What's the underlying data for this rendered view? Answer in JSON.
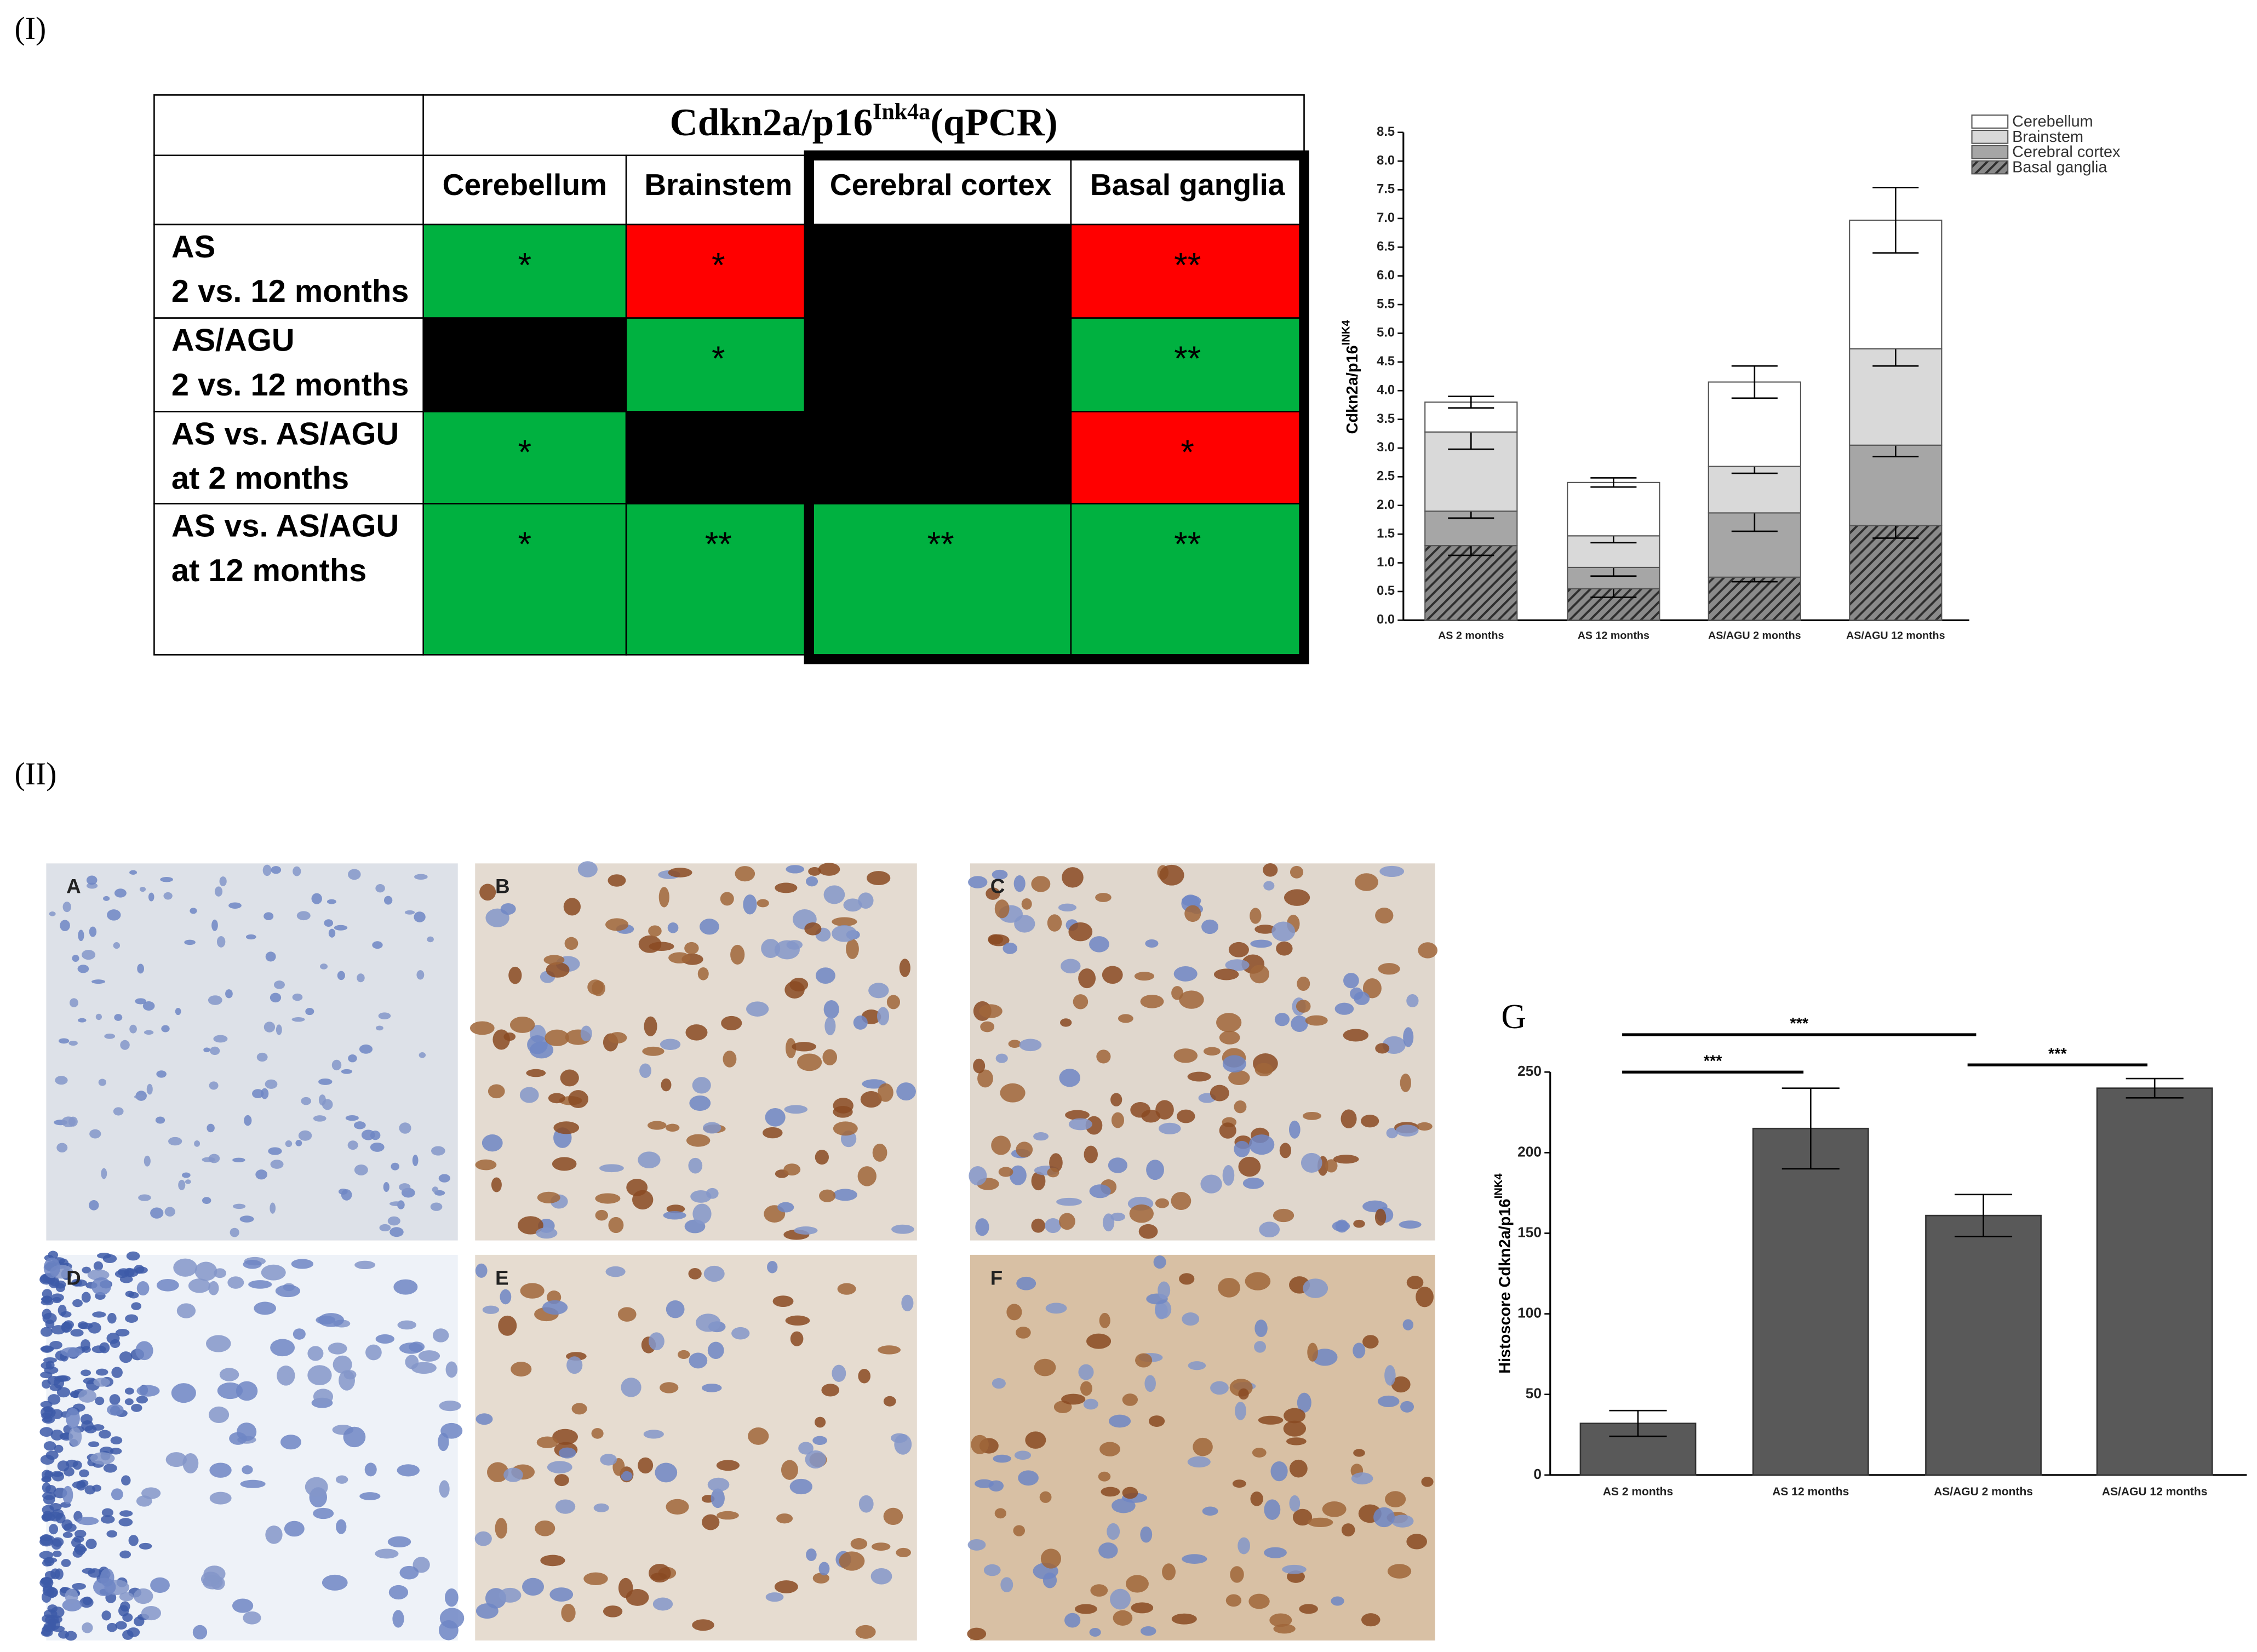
{
  "panel_labels": [
    "(I)",
    "(II)"
  ],
  "table": {
    "title": {
      "main": "Cdkn2a/p16",
      "sup": "Ink4a",
      "suffix": "(qPCR)"
    },
    "columns": [
      "Cerebellum",
      "Brainstem",
      "Cerebral cortex",
      "Basal ganglia"
    ],
    "rows": [
      {
        "label": [
          "AS",
          "2 vs. 12 months"
        ],
        "cells": [
          {
            "text": "*",
            "color": "#00b140"
          },
          {
            "text": "*",
            "color": "#ff0000"
          },
          {
            "color": "#000000"
          },
          {
            "text": "**",
            "color": "#ff0000"
          }
        ]
      },
      {
        "label": [
          "AS/AGU",
          "2 vs. 12 months"
        ],
        "cells": [
          {
            "color": "#000000"
          },
          {
            "text": "*",
            "color": "#00b140"
          },
          {
            "color": "#000000"
          },
          {
            "text": "**",
            "color": "#00b140"
          }
        ]
      },
      {
        "label": [
          "AS vs. AS/AGU",
          "at 2 months"
        ],
        "cells": [
          {
            "text": "*",
            "color": "#00b140"
          },
          {
            "color": "#000000"
          },
          {
            "color": "#000000"
          },
          {
            "text": "*",
            "color": "#ff0000"
          }
        ]
      },
      {
        "label": [
          "AS vs. AS/AGU",
          "at 12 months"
        ],
        "cells": [
          {
            "text": "*",
            "color": "#00b140"
          },
          {
            "text": "**",
            "color": "#00b140"
          },
          {
            "text": "**",
            "color": "#00b140"
          },
          {
            "text": "**",
            "color": "#00b140"
          }
        ]
      }
    ]
  },
  "micrographs": [
    "A",
    "B",
    "C",
    "D",
    "E",
    "F"
  ],
  "chart_data": [
    {
      "type": "stacked_bar",
      "ylabel": {
        "main": "Cdkn2a/p16",
        "sup": "INK4"
      },
      "categories": [
        "AS 2 months",
        "AS 12 months",
        "AS/AGU 2 months",
        "AS/AGU 12 months"
      ],
      "series": [
        {
          "name": "Basal ganglia",
          "color": "#5a5a5a",
          "hatch": true,
          "values": [
            1.3,
            0.55,
            0.75,
            1.65
          ],
          "errors": [
            0.17,
            0.15,
            0.08,
            0.22
          ]
        },
        {
          "name": "Cerebral cortex",
          "color": "#a6a6a6",
          "values": [
            0.6,
            0.37,
            1.12,
            1.4
          ],
          "errors": [
            0.12,
            0.15,
            0.32,
            0.2
          ]
        },
        {
          "name": "Brainstem",
          "color": "#d9d9d9",
          "values": [
            1.38,
            0.55,
            0.81,
            1.68
          ],
          "errors": [
            0.3,
            0.12,
            0.12,
            0.3
          ]
        },
        {
          "name": "Cerebellum",
          "color": "#ffffff",
          "values": [
            0.52,
            0.93,
            1.47,
            2.24
          ],
          "errors": [
            0.1,
            0.08,
            0.28,
            0.57
          ]
        }
      ],
      "ylim": [
        0,
        8.5
      ],
      "yticks": [
        {
          "value": 0,
          "label": "0.0"
        },
        0.5,
        {
          "value": 1,
          "label": "1.0"
        },
        1.5,
        {
          "value": 2,
          "label": "2.0"
        },
        2.5,
        {
          "value": 3,
          "label": "3.0"
        },
        3.5,
        {
          "value": 4,
          "label": "4.0"
        },
        4.5,
        {
          "value": 5,
          "label": "5.0"
        },
        5.5,
        {
          "value": 6,
          "label": "6.0"
        },
        6.5,
        {
          "value": 7,
          "label": "7.0"
        },
        7.5,
        {
          "value": 8,
          "label": "8.0"
        },
        8.5
      ],
      "legend": "top-right"
    },
    {
      "type": "bar",
      "title": "G",
      "ylabel": {
        "main": "Histoscore Cdkn2a/p16",
        "sup": "INK4"
      },
      "categories": [
        "AS 2 months",
        "AS 12 months",
        "AS/AGU 2 months",
        "AS/AGU 12 months"
      ],
      "values": [
        32,
        215,
        161,
        240
      ],
      "errors": [
        8,
        25,
        13,
        6
      ],
      "color": "#595959",
      "ylim": [
        0,
        250
      ],
      "yticks": [
        0,
        50,
        100,
        150,
        200,
        250
      ],
      "annotations": [
        {
          "from": 0,
          "to": 2,
          "label": "***"
        },
        {
          "from": 0,
          "to": 1,
          "label": "***"
        },
        {
          "from": 2,
          "to": 3,
          "label": "***"
        }
      ]
    }
  ]
}
